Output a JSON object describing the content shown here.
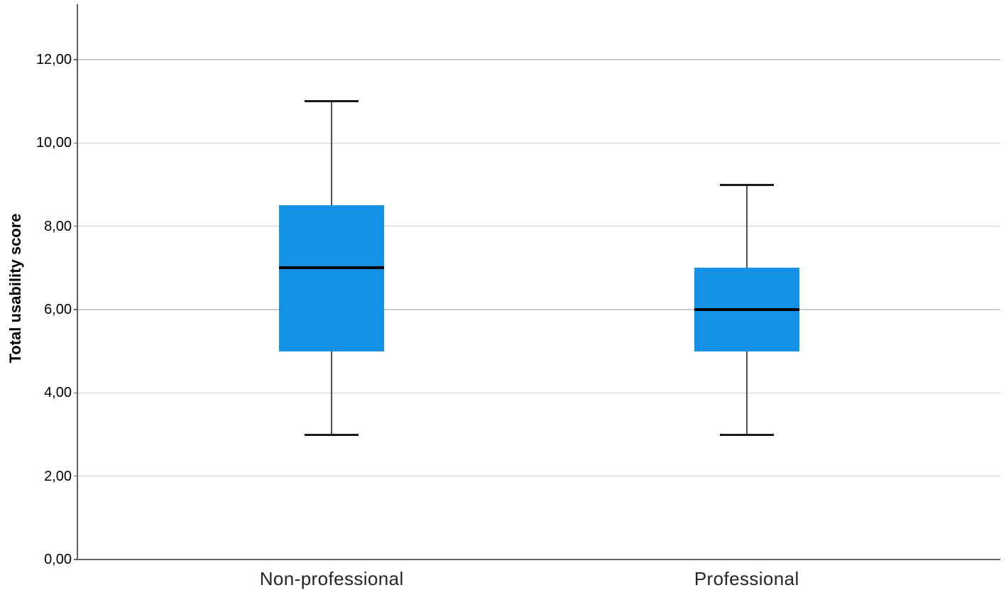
{
  "chart_data": {
    "type": "boxplot",
    "title": "",
    "ylabel": "Total usability score",
    "xlabel": "",
    "categories": [
      "Non-professional",
      "Professional"
    ],
    "y_tick_labels": [
      "0,00",
      "2,00",
      "4,00",
      "6,00",
      "8,00",
      "10,00",
      "12,00"
    ],
    "y_tick_values": [
      0,
      2,
      4,
      6,
      8,
      10,
      12
    ],
    "ylim": [
      0,
      13.33
    ],
    "grid": true,
    "legend": null,
    "decimal_separator": ",",
    "series": [
      {
        "category": "Non-professional",
        "whisker_low": 3.0,
        "q1": 5.0,
        "median": 7.0,
        "q3": 8.5,
        "whisker_high": 11.0,
        "outliers": []
      },
      {
        "category": "Professional",
        "whisker_low": 3.0,
        "q1": 5.0,
        "median": 6.0,
        "q3": 7.0,
        "whisker_high": 9.0,
        "outliers": []
      }
    ],
    "colors": {
      "box_fill": "#1392E8",
      "median_line": "#000000",
      "whisker_line": "#4F4F4F",
      "whisker_cap": "#1A1A1A",
      "gridline": "#C9C9C9",
      "axis_line": "#616161",
      "tick_label": "#000000",
      "category_label": "#262626",
      "background": "#FFFFFF"
    }
  }
}
